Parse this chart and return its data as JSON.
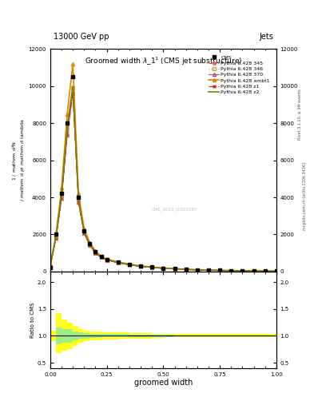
{
  "title_top": "13000 GeV pp",
  "title_right": "Jets",
  "plot_title": "Groomed width λ_1¹ (CMS jet substructure)",
  "xlabel": "groomed width",
  "ylabel_main": "1 / mathrm d²N\n/ mathrm d p_T mathrm d lambda",
  "ylabel_ratio": "Ratio to CMS",
  "watermark": "CMS_2021_I1920187",
  "rivet_label": "Rivet 3.1.10, ≥ 3M events",
  "arxiv_label": "mcplots.cern.ch [arXiv:1306.3436]",
  "x": [
    0.0,
    0.025,
    0.05,
    0.075,
    0.1,
    0.125,
    0.15,
    0.175,
    0.2,
    0.225,
    0.25,
    0.3,
    0.35,
    0.4,
    0.45,
    0.5,
    0.55,
    0.6,
    0.65,
    0.7,
    0.75,
    0.8,
    0.85,
    0.9,
    0.95,
    1.0
  ],
  "cms_y": [
    200,
    2000,
    4200,
    8000,
    10500,
    4000,
    2200,
    1500,
    1050,
    800,
    650,
    500,
    380,
    290,
    230,
    180,
    145,
    115,
    90,
    72,
    58,
    45,
    35,
    27,
    20,
    15
  ],
  "p345_y": [
    300,
    1800,
    4000,
    7500,
    9800,
    3800,
    2100,
    1430,
    1010,
    760,
    620,
    475,
    365,
    275,
    218,
    170,
    138,
    108,
    85,
    68,
    54,
    42,
    33,
    25,
    19,
    14
  ],
  "p346_y": [
    280,
    1850,
    4100,
    7700,
    9900,
    3850,
    2120,
    1450,
    1020,
    770,
    625,
    480,
    368,
    278,
    220,
    172,
    139,
    109,
    86,
    69,
    55,
    43,
    33,
    26,
    19,
    14
  ],
  "p370_y": [
    290,
    1780,
    3950,
    7400,
    9700,
    3750,
    2080,
    1415,
    1000,
    755,
    615,
    470,
    360,
    272,
    215,
    168,
    136,
    107,
    84,
    67,
    53,
    41,
    32,
    25,
    18,
    13
  ],
  "pambt1_y": [
    320,
    1950,
    4500,
    8500,
    11200,
    4200,
    2300,
    1560,
    1100,
    825,
    670,
    515,
    395,
    300,
    238,
    185,
    150,
    118,
    93,
    74,
    59,
    46,
    36,
    28,
    21,
    15
  ],
  "pz1_y": [
    270,
    1750,
    3900,
    7300,
    9600,
    3700,
    2060,
    1400,
    990,
    748,
    608,
    465,
    357,
    270,
    213,
    166,
    134,
    105,
    83,
    66,
    52,
    40,
    31,
    24,
    18,
    13
  ],
  "pz2_y": [
    285,
    1880,
    4150,
    7800,
    10000,
    3880,
    2140,
    1460,
    1028,
    775,
    630,
    483,
    370,
    280,
    222,
    174,
    140,
    110,
    87,
    70,
    56,
    43,
    34,
    26,
    20,
    14
  ],
  "ratio_x_edges": [
    0.0,
    0.025,
    0.05,
    0.075,
    0.1,
    0.125,
    0.15,
    0.175,
    0.2,
    0.225,
    0.25,
    0.3,
    0.35,
    0.4,
    0.45,
    0.5,
    0.55,
    0.6,
    0.65,
    0.7,
    0.75,
    0.8,
    0.85,
    0.9,
    0.95,
    1.0
  ],
  "ratio_green_lo": [
    1.0,
    0.85,
    0.88,
    0.88,
    0.92,
    0.94,
    0.95,
    0.96,
    0.96,
    0.97,
    0.97,
    0.97,
    0.98,
    0.98,
    0.98,
    0.98,
    0.99,
    0.99,
    0.99,
    0.99,
    0.99,
    0.99,
    0.99,
    0.99,
    0.99,
    0.99
  ],
  "ratio_green_hi": [
    1.0,
    1.15,
    1.12,
    1.12,
    1.08,
    1.06,
    1.05,
    1.04,
    1.04,
    1.03,
    1.03,
    1.03,
    1.02,
    1.02,
    1.02,
    1.02,
    1.01,
    1.01,
    1.01,
    1.01,
    1.01,
    1.01,
    1.01,
    1.01,
    1.01,
    1.01
  ],
  "ratio_yellow_lo": [
    0.9,
    0.68,
    0.72,
    0.75,
    0.82,
    0.88,
    0.9,
    0.92,
    0.92,
    0.93,
    0.93,
    0.94,
    0.95,
    0.95,
    0.96,
    0.97,
    0.97,
    0.97,
    0.97,
    0.97,
    0.97,
    0.97,
    0.97,
    0.97,
    0.97,
    0.97
  ],
  "ratio_yellow_hi": [
    1.1,
    1.42,
    1.3,
    1.25,
    1.18,
    1.12,
    1.1,
    1.08,
    1.08,
    1.07,
    1.07,
    1.06,
    1.05,
    1.05,
    1.04,
    1.03,
    1.03,
    1.03,
    1.03,
    1.03,
    1.03,
    1.03,
    1.03,
    1.03,
    1.03,
    1.03
  ],
  "color_345": "#d45050",
  "color_346": "#c8a040",
  "color_370": "#b05070",
  "color_ambt1": "#e08800",
  "color_z1": "#c03030",
  "color_z2": "#808000",
  "ylim_main": [
    0,
    12000
  ],
  "yticks_main": [
    0,
    2000,
    4000,
    6000,
    8000,
    10000,
    12000
  ],
  "ylim_ratio": [
    0.4,
    2.2
  ],
  "yticks_ratio": [
    0.5,
    1.0,
    1.5,
    2.0
  ]
}
